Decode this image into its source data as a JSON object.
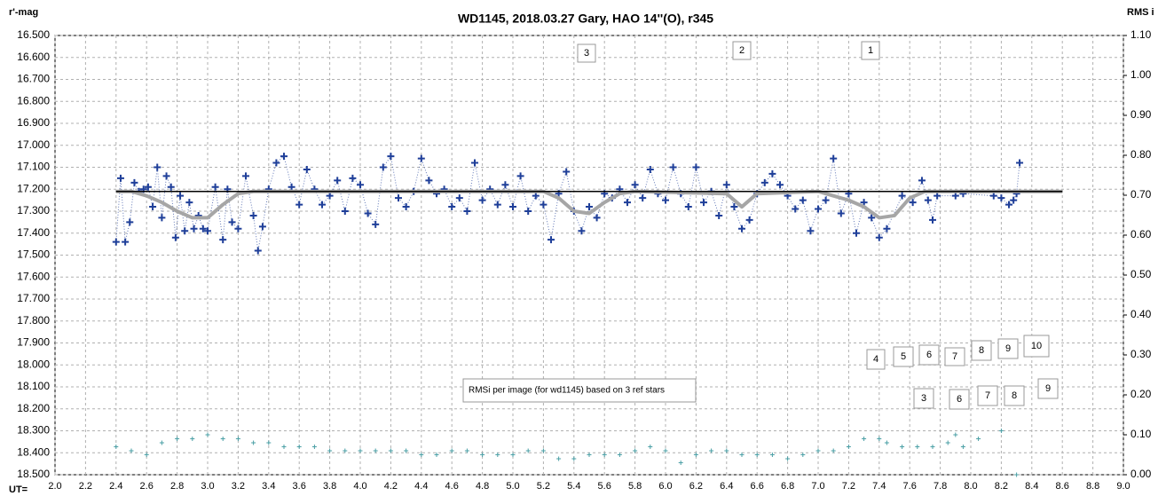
{
  "chart_data": {
    "type": "line",
    "title": "WD1145, 2018.03.27  Gary, HAO  14''(O), r345",
    "ylabel": "r'-mag",
    "y2label": "RMS i",
    "xlabel": "UT=",
    "xlim": [
      2.0,
      9.0
    ],
    "ylim": [
      18.5,
      16.5
    ],
    "y2lim": [
      0,
      1.1
    ],
    "grid": true,
    "xticks": [
      {
        "value": 2,
        "label": "2.0"
      },
      2.2,
      2.4,
      2.6,
      2.8,
      {
        "value": 3,
        "label": "3.0"
      },
      3.2,
      3.4,
      3.6,
      3.8,
      {
        "value": 4,
        "label": "4.0"
      },
      4.2,
      4.4,
      4.6,
      4.8,
      {
        "value": 5,
        "label": "5.0"
      },
      5.2,
      5.4,
      5.6,
      5.8,
      {
        "value": 6,
        "label": "6.0"
      },
      6.2,
      6.4,
      6.6,
      6.8,
      {
        "value": 7,
        "label": "7.0"
      },
      7.2,
      7.4,
      7.6,
      7.8,
      {
        "value": 8,
        "label": "8.0"
      },
      8.2,
      8.4,
      8.6,
      8.8,
      {
        "value": 9,
        "label": "9.0"
      }
    ],
    "yticks": [
      {
        "value": 16.5,
        "label": "16.500"
      },
      {
        "value": 16.6,
        "label": "16.600"
      },
      {
        "value": 16.7,
        "label": "16.700"
      },
      {
        "value": 16.8,
        "label": "16.800"
      },
      {
        "value": 16.9,
        "label": "16.900"
      },
      {
        "value": 17.0,
        "label": "17.000"
      },
      {
        "value": 17.1,
        "label": "17.100"
      },
      {
        "value": 17.2,
        "label": "17.200"
      },
      {
        "value": 17.3,
        "label": "17.300"
      },
      {
        "value": 17.4,
        "label": "17.400"
      },
      {
        "value": 17.5,
        "label": "17.500"
      },
      {
        "value": 17.6,
        "label": "17.600"
      },
      {
        "value": 17.7,
        "label": "17.700"
      },
      {
        "value": 17.8,
        "label": "17.800"
      },
      {
        "value": 17.9,
        "label": "17.900"
      },
      {
        "value": 18.0,
        "label": "18.000"
      },
      {
        "value": 18.1,
        "label": "18.100"
      },
      {
        "value": 18.2,
        "label": "18.200"
      },
      {
        "value": 18.3,
        "label": "18.300"
      },
      {
        "value": 18.4,
        "label": "18.400"
      },
      {
        "value": 18.5,
        "label": "18.500"
      }
    ],
    "y2ticks": [
      {
        "value": 1.1,
        "label": "1.10"
      },
      {
        "value": 1.0,
        "label": "1.00"
      },
      {
        "value": 0.9,
        "label": "0.90"
      },
      {
        "value": 0.8,
        "label": "0.80"
      },
      {
        "value": 0.7,
        "label": "0.70"
      },
      {
        "value": 0.6,
        "label": "0.60"
      },
      {
        "value": 0.5,
        "label": "0.50"
      },
      {
        "value": 0.4,
        "label": "0.40"
      },
      {
        "value": 0.3,
        "label": "0.30"
      },
      {
        "value": 0.2,
        "label": "0.20"
      },
      {
        "value": 0.1,
        "label": "0.10"
      },
      {
        "value": 0,
        "label": "0.00"
      }
    ],
    "series": [
      {
        "color": "#1f3f99",
        "style": "cross-dotted",
        "x": [
          2.4,
          2.43,
          2.46,
          2.49,
          2.52,
          2.55,
          2.58,
          2.61,
          2.64,
          2.67,
          2.7,
          2.73,
          2.76,
          2.79,
          2.82,
          2.85,
          2.88,
          2.91,
          2.94,
          2.97,
          3.0,
          3.05,
          3.1,
          3.13,
          3.16,
          3.2,
          3.25,
          3.3,
          3.33,
          3.36,
          3.4,
          3.45,
          3.5,
          3.55,
          3.6,
          3.65,
          3.7,
          3.75,
          3.8,
          3.85,
          3.9,
          3.95,
          4.0,
          4.05,
          4.1,
          4.15,
          4.2,
          4.25,
          4.3,
          4.35,
          4.4,
          4.45,
          4.5,
          4.55,
          4.6,
          4.65,
          4.7,
          4.75,
          4.8,
          4.85,
          4.9,
          4.95,
          5.0,
          5.05,
          5.1,
          5.15,
          5.2,
          5.25,
          5.3,
          5.35,
          5.4,
          5.45,
          5.5,
          5.55,
          5.6,
          5.65,
          5.7,
          5.75,
          5.8,
          5.85,
          5.9,
          5.95,
          6.0,
          6.05,
          6.1,
          6.15,
          6.2,
          6.25,
          6.3,
          6.35,
          6.4,
          6.45,
          6.5,
          6.55,
          6.6,
          6.65,
          6.7,
          6.75,
          6.8,
          6.85,
          6.9,
          6.95,
          7.0,
          7.05,
          7.1,
          7.15,
          7.2,
          7.25,
          7.3,
          7.35,
          7.4,
          7.45,
          7.55,
          7.62,
          7.68,
          7.72,
          7.75,
          7.78,
          7.9,
          7.95,
          8.15,
          8.2,
          8.25,
          8.28,
          8.3,
          8.32
        ],
        "values": [
          17.44,
          17.15,
          17.44,
          17.35,
          17.17,
          17.21,
          17.2,
          17.19,
          17.28,
          17.1,
          17.33,
          17.14,
          17.19,
          17.42,
          17.23,
          17.39,
          17.26,
          17.38,
          17.32,
          17.38,
          17.39,
          17.19,
          17.43,
          17.2,
          17.35,
          17.38,
          17.14,
          17.32,
          17.48,
          17.37,
          17.2,
          17.08,
          17.05,
          17.19,
          17.27,
          17.11,
          17.2,
          17.27,
          17.23,
          17.16,
          17.3,
          17.15,
          17.18,
          17.31,
          17.36,
          17.1,
          17.05,
          17.24,
          17.28,
          17.21,
          17.06,
          17.16,
          17.22,
          17.2,
          17.28,
          17.24,
          17.3,
          17.08,
          17.25,
          17.2,
          17.27,
          17.18,
          17.28,
          17.14,
          17.3,
          17.23,
          17.27,
          17.43,
          17.22,
          17.12,
          17.3,
          17.39,
          17.28,
          17.33,
          17.22,
          17.24,
          17.2,
          17.26,
          17.18,
          17.24,
          17.11,
          17.22,
          17.25,
          17.1,
          17.22,
          17.28,
          17.1,
          17.26,
          17.21,
          17.32,
          17.18,
          17.28,
          17.38,
          17.34,
          17.22,
          17.17,
          17.13,
          17.18,
          17.23,
          17.29,
          17.25,
          17.39,
          17.29,
          17.25,
          17.06,
          17.31,
          17.22,
          17.4,
          17.26,
          17.33,
          17.42,
          17.38,
          17.23,
          17.26,
          17.16,
          17.25,
          17.34,
          17.23,
          17.23,
          17.22,
          17.23,
          17.24,
          17.27,
          17.25,
          17.22,
          17.08
        ]
      },
      {
        "color": "#a6a6a6",
        "style": "thick",
        "x": [
          2.4,
          2.5,
          2.6,
          2.7,
          2.8,
          2.9,
          3.0,
          3.1,
          3.2,
          3.3,
          5.2,
          5.3,
          5.4,
          5.5,
          5.6,
          5.7,
          5.8,
          6.4,
          6.5,
          6.6,
          7.0,
          7.1,
          7.2,
          7.3,
          7.4,
          7.5,
          7.6,
          7.7,
          8.6
        ],
        "values": [
          17.21,
          17.21,
          17.23,
          17.26,
          17.3,
          17.33,
          17.33,
          17.27,
          17.22,
          17.21,
          17.21,
          17.24,
          17.3,
          17.31,
          17.26,
          17.22,
          17.21,
          17.22,
          17.28,
          17.22,
          17.21,
          17.23,
          17.25,
          17.28,
          17.33,
          17.32,
          17.24,
          17.21,
          17.21
        ]
      },
      {
        "color": "#000000",
        "style": "line",
        "x": [
          2.4,
          8.6
        ],
        "values": [
          17.21,
          17.21
        ]
      },
      {
        "color": "#4a9fa5",
        "style": "cross",
        "axis": "y2",
        "x": [
          2.4,
          2.5,
          2.6,
          2.7,
          2.8,
          2.9,
          3.0,
          3.1,
          3.2,
          3.3,
          3.4,
          3.5,
          3.6,
          3.7,
          3.8,
          3.9,
          4.0,
          4.1,
          4.2,
          4.3,
          4.4,
          4.5,
          4.6,
          4.7,
          4.8,
          4.9,
          5.0,
          5.1,
          5.2,
          5.3,
          5.4,
          5.5,
          5.6,
          5.7,
          5.8,
          5.9,
          6.0,
          6.1,
          6.2,
          6.3,
          6.4,
          6.5,
          6.6,
          6.7,
          6.8,
          6.9,
          7.0,
          7.1,
          7.2,
          7.3,
          7.4,
          7.45,
          7.55,
          7.65,
          7.75,
          7.85,
          7.9,
          7.95,
          8.05,
          8.2,
          8.3
        ],
        "values": [
          0.07,
          0.06,
          0.05,
          0.08,
          0.09,
          0.09,
          0.1,
          0.09,
          0.09,
          0.08,
          0.08,
          0.07,
          0.07,
          0.07,
          0.06,
          0.06,
          0.06,
          0.06,
          0.06,
          0.06,
          0.05,
          0.05,
          0.06,
          0.06,
          0.05,
          0.05,
          0.05,
          0.06,
          0.06,
          0.04,
          0.04,
          0.05,
          0.05,
          0.05,
          0.06,
          0.07,
          0.06,
          0.03,
          0.05,
          0.06,
          0.06,
          0.05,
          0.05,
          0.05,
          0.04,
          0.05,
          0.06,
          0.06,
          0.07,
          0.09,
          0.09,
          0.08,
          0.07,
          0.07,
          0.07,
          0.08,
          0.1,
          0.07,
          0.09,
          0.11,
          0.0
        ]
      }
    ],
    "annotations": [
      "3",
      "2",
      "1",
      "4",
      "5",
      "6",
      "7",
      "8",
      "9",
      "10",
      "3",
      "6",
      "7",
      "8",
      "9",
      "RMSi per image (for wd1145) based on 3 ref stars"
    ]
  }
}
